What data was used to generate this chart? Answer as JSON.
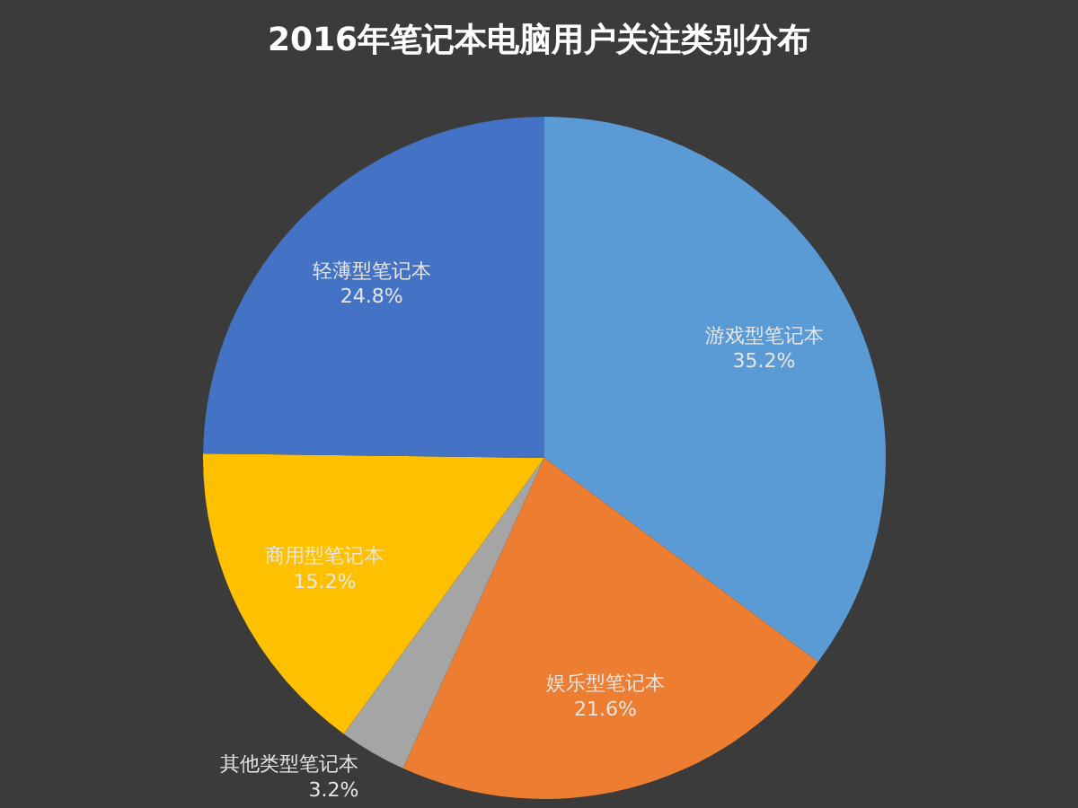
{
  "chart_data": {
    "type": "pie",
    "title": "2016年笔记本电脑用户关注类别分布",
    "categories": [
      "游戏型笔记本",
      "娱乐型笔记本",
      "其他类型笔记本",
      "商用型笔记本",
      "轻薄型笔记本"
    ],
    "values": [
      35.2,
      21.6,
      3.2,
      15.2,
      24.8
    ],
    "value_labels": [
      "35.2%",
      "21.6%",
      "3.2%",
      "15.2%",
      "24.8%"
    ],
    "colors": [
      "#5b9bd5",
      "#ed7d31",
      "#a5a5a5",
      "#ffc000",
      "#4472c4"
    ],
    "legend": false
  }
}
